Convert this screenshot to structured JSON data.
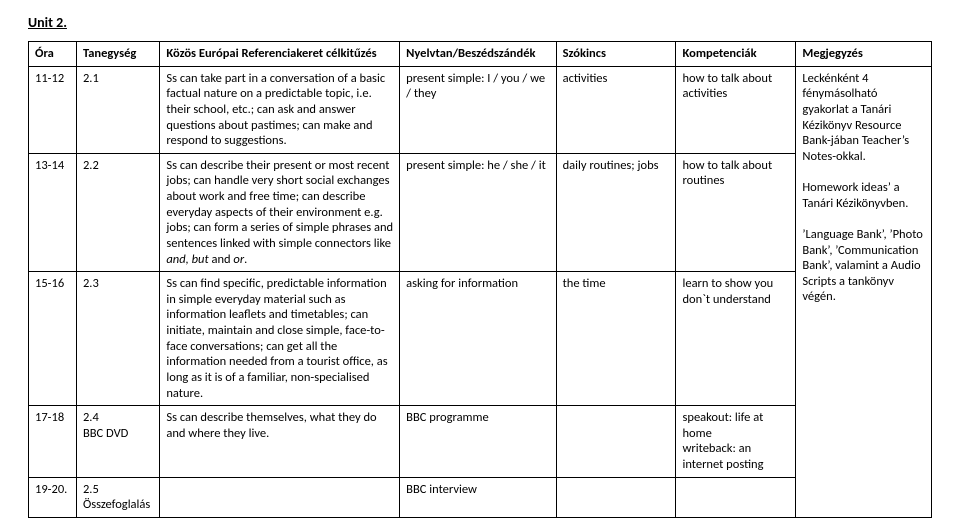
{
  "unit_title": "Unit 2.",
  "headers": {
    "ora": "Óra",
    "tanegyseg": "Tanegység",
    "celkituzes": "Közös Európai Referenciakeret célkitűzés",
    "nyelvtan": "Nyelvtan/Beszédszándék",
    "szokincs": "Szókincs",
    "kompetenciak": "Kompetenciák",
    "megjegyzes": "Megjegyzés"
  },
  "rows": [
    {
      "ora": "11-12",
      "tan": "2.1",
      "cel": "Ss can take part in a conversation of a basic factual nature on a predictable topic, i.e. their school, etc.; can ask and answer questions about pastimes; can make and respond to suggestions.",
      "nyelv": "present simple: I / you / we / they",
      "szok": "activities",
      "komp": "how to talk about activities"
    },
    {
      "ora": "13-14",
      "tan": "2.2",
      "cel_prefix": "Ss can describe their present or most recent jobs; can handle very short social exchanges about work and free time; can describe everyday aspects of their environment e.g. jobs; can form a series of simple phrases and sentences linked with simple connectors like ",
      "cel_em": "and, but",
      "cel_mid": " and ",
      "cel_em2": "or",
      "cel_suffix": ".",
      "nyelv": "present simple: he / she / it",
      "szok": "daily routines; jobs",
      "komp": "how to talk about routines"
    },
    {
      "ora": "15-16",
      "tan": "2.3",
      "cel": "Ss can find specific, predictable information in simple everyday material such as information leaflets and timetables; can initiate, maintain and close simple, face-to-face conversations; can get all the information needed from a tourist office, as long as it is of a familiar, non-specialised nature.",
      "nyelv": "asking for information",
      "szok": "the time",
      "komp": "learn to show you don`t understand"
    },
    {
      "ora": "17-18",
      "tan": "2.4\nBBC DVD",
      "cel": "Ss can describe themselves, what they do and where they live.",
      "nyelv": "BBC programme",
      "szok": "",
      "komp": "speakout: life at home\nwriteback: an internet posting"
    },
    {
      "ora": "19-20.",
      "tan": "2.5\nÖsszefoglalás",
      "cel": "",
      "nyelv": "BBC interview",
      "szok": "",
      "komp": ""
    }
  ],
  "megjegyzes": "Leckénként 4 fénymásolható gyakorlat a Tanári Kézikönyv Resource Bank-jában Teacher´s Notes-okkal.\n\nHomework ideas´ a Tanári Kézikönyvben.\n\n´Language Bank´, ´Photo Bank´, ´Communication Bank´, valamint a Audio Scripts a tankönyv végén."
}
